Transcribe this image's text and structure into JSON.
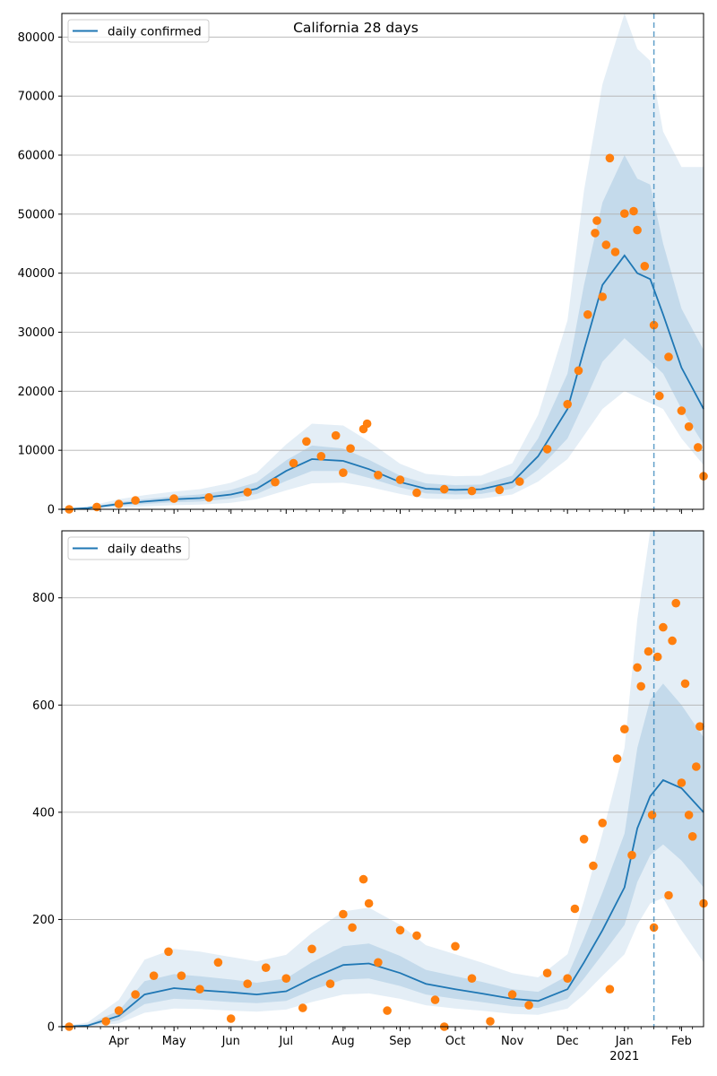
{
  "colors": {
    "median_line": "#1f77b4",
    "points": "#ff7f0e",
    "band": "#1f77b4",
    "grid": "#b0b0b0",
    "vline": "#1f77b4"
  },
  "x_axis": {
    "month_labels": [
      "Apr",
      "May",
      "Jun",
      "Jul",
      "Aug",
      "Sep",
      "Oct",
      "Nov",
      "Dec",
      "Jan",
      "Feb"
    ],
    "year_label": "2021",
    "range": [
      "2020-03-01",
      "2021-02-13"
    ],
    "forecast_start": "2021-01-17"
  },
  "chart_data": [
    {
      "type": "line",
      "title": "California 28 days",
      "legend": {
        "label": "daily confirmed",
        "position": "top-left"
      },
      "ylim": [
        0,
        84000
      ],
      "yticks": [
        0,
        10000,
        20000,
        30000,
        40000,
        50000,
        60000,
        70000,
        80000
      ],
      "grid": "horizontal",
      "x": [
        "2020-03-01",
        "2020-03-15",
        "2020-04-01",
        "2020-04-15",
        "2020-05-01",
        "2020-05-15",
        "2020-06-01",
        "2020-06-15",
        "2020-07-01",
        "2020-07-15",
        "2020-08-01",
        "2020-08-15",
        "2020-09-01",
        "2020-09-15",
        "2020-10-01",
        "2020-10-15",
        "2020-11-01",
        "2020-11-15",
        "2020-12-01",
        "2020-12-10",
        "2020-12-20",
        "2021-01-01",
        "2021-01-08",
        "2021-01-15",
        "2021-01-22",
        "2021-02-01",
        "2021-02-13"
      ],
      "series": [
        {
          "name": "daily confirmed",
          "values": [
            0,
            200,
            900,
            1300,
            1700,
            1900,
            2500,
            3500,
            6500,
            8500,
            8200,
            6800,
            4600,
            3500,
            3300,
            3400,
            4600,
            9000,
            17000,
            27000,
            38000,
            43000,
            40000,
            39000,
            33000,
            24000,
            17000
          ]
        }
      ],
      "band_inner": {
        "lower": [
          0,
          100,
          600,
          900,
          1200,
          1300,
          1800,
          2600,
          4800,
          6500,
          6500,
          5300,
          3700,
          2700,
          2500,
          2600,
          3500,
          6700,
          12000,
          18000,
          25000,
          29000,
          27000,
          25000,
          23000,
          17000,
          11000
        ],
        "upper": [
          0,
          300,
          1200,
          1700,
          2200,
          2500,
          3300,
          4600,
          8300,
          10800,
          10300,
          8400,
          5700,
          4400,
          4100,
          4200,
          5700,
          12000,
          23000,
          38000,
          52000,
          60000,
          56000,
          55000,
          45000,
          34000,
          27000
        ]
      },
      "band_outer": {
        "lower": [
          0,
          50,
          300,
          500,
          700,
          800,
          1100,
          1700,
          3200,
          4400,
          4500,
          3800,
          2600,
          1800,
          1700,
          1800,
          2500,
          4700,
          8500,
          12500,
          17000,
          20000,
          19000,
          18000,
          17000,
          12000,
          7500
        ],
        "upper": [
          0,
          500,
          1700,
          2400,
          3000,
          3400,
          4500,
          6200,
          11000,
          14500,
          14200,
          11500,
          7700,
          6000,
          5600,
          5700,
          7800,
          16000,
          32000,
          54000,
          72000,
          84000,
          78000,
          76000,
          64000,
          58000,
          58000
        ]
      },
      "points_sample": [
        [
          "2020-03-05",
          0
        ],
        [
          "2020-03-20",
          400
        ],
        [
          "2020-04-01",
          900
        ],
        [
          "2020-04-10",
          1500
        ],
        [
          "2020-05-01",
          1800
        ],
        [
          "2020-05-20",
          2000
        ],
        [
          "2020-06-10",
          2900
        ],
        [
          "2020-06-25",
          4600
        ],
        [
          "2020-07-05",
          7800
        ],
        [
          "2020-07-12",
          11500
        ],
        [
          "2020-07-20",
          9000
        ],
        [
          "2020-07-28",
          12500
        ],
        [
          "2020-08-01",
          6200
        ],
        [
          "2020-08-05",
          10300
        ],
        [
          "2020-08-12",
          13600
        ],
        [
          "2020-08-14",
          14500
        ],
        [
          "2020-08-20",
          5800
        ],
        [
          "2020-09-01",
          5000
        ],
        [
          "2020-09-10",
          2800
        ],
        [
          "2020-09-25",
          3400
        ],
        [
          "2020-10-10",
          3100
        ],
        [
          "2020-10-25",
          3300
        ],
        [
          "2020-11-05",
          4700
        ],
        [
          "2020-11-20",
          10200
        ],
        [
          "2020-12-01",
          17800
        ],
        [
          "2020-12-07",
          23500
        ],
        [
          "2020-12-12",
          33000
        ],
        [
          "2020-12-16",
          46800
        ],
        [
          "2020-12-17",
          48900
        ],
        [
          "2020-12-20",
          36000
        ],
        [
          "2020-12-22",
          44800
        ],
        [
          "2020-12-24",
          59500
        ],
        [
          "2020-12-27",
          43600
        ],
        [
          "2021-01-01",
          50100
        ],
        [
          "2021-01-06",
          50500
        ],
        [
          "2021-01-08",
          47300
        ],
        [
          "2021-01-12",
          41200
        ],
        [
          "2021-01-17",
          31200
        ],
        [
          "2021-01-20",
          19200
        ],
        [
          "2021-01-25",
          25800
        ],
        [
          "2021-02-01",
          16700
        ],
        [
          "2021-02-05",
          14000
        ],
        [
          "2021-02-10",
          10500
        ],
        [
          "2021-02-13",
          5600
        ]
      ]
    },
    {
      "type": "line",
      "title": "",
      "legend": {
        "label": "daily deaths",
        "position": "top-left"
      },
      "ylim": [
        0,
        925
      ],
      "yticks": [
        0,
        200,
        400,
        600,
        800
      ],
      "grid": "horizontal",
      "x": [
        "2020-03-01",
        "2020-03-15",
        "2020-04-01",
        "2020-04-15",
        "2020-05-01",
        "2020-05-15",
        "2020-06-01",
        "2020-06-15",
        "2020-07-01",
        "2020-07-15",
        "2020-08-01",
        "2020-08-15",
        "2020-09-01",
        "2020-09-15",
        "2020-10-01",
        "2020-10-15",
        "2020-11-01",
        "2020-11-15",
        "2020-12-01",
        "2020-12-10",
        "2020-12-20",
        "2021-01-01",
        "2021-01-08",
        "2021-01-15",
        "2021-01-22",
        "2021-02-01",
        "2021-02-13"
      ],
      "series": [
        {
          "name": "daily deaths",
          "values": [
            0,
            2,
            20,
            60,
            72,
            68,
            64,
            60,
            66,
            90,
            115,
            118,
            100,
            80,
            70,
            62,
            52,
            48,
            70,
            120,
            180,
            260,
            370,
            430,
            460,
            445,
            400
          ]
        }
      ],
      "band_inner": {
        "lower": [
          0,
          1,
          12,
          42,
          52,
          50,
          46,
          44,
          48,
          68,
          88,
          90,
          76,
          60,
          52,
          46,
          38,
          35,
          52,
          90,
          135,
          190,
          270,
          320,
          340,
          310,
          260
        ],
        "upper": [
          0,
          4,
          30,
          85,
          98,
          94,
          88,
          82,
          90,
          120,
          150,
          155,
          132,
          106,
          94,
          84,
          70,
          65,
          95,
          165,
          250,
          360,
          520,
          610,
          640,
          600,
          540
        ]
      },
      "band_outer": {
        "lower": [
          0,
          0,
          6,
          26,
          34,
          33,
          30,
          28,
          32,
          46,
          60,
          62,
          52,
          40,
          34,
          30,
          24,
          22,
          34,
          60,
          95,
          135,
          190,
          230,
          240,
          180,
          120
        ],
        "upper": [
          0,
          8,
          50,
          125,
          145,
          140,
          130,
          122,
          134,
          175,
          215,
          222,
          190,
          152,
          135,
          120,
          100,
          92,
          135,
          235,
          360,
          520,
          760,
          925,
          925,
          925,
          925
        ]
      },
      "points_sample": [
        [
          "2020-03-05",
          0
        ],
        [
          "2020-03-25",
          10
        ],
        [
          "2020-04-01",
          30
        ],
        [
          "2020-04-10",
          60
        ],
        [
          "2020-04-20",
          95
        ],
        [
          "2020-04-28",
          140
        ],
        [
          "2020-05-05",
          95
        ],
        [
          "2020-05-15",
          70
        ],
        [
          "2020-05-25",
          120
        ],
        [
          "2020-06-01",
          15
        ],
        [
          "2020-06-10",
          80
        ],
        [
          "2020-06-20",
          110
        ],
        [
          "2020-07-01",
          90
        ],
        [
          "2020-07-10",
          35
        ],
        [
          "2020-07-15",
          145
        ],
        [
          "2020-07-25",
          80
        ],
        [
          "2020-08-01",
          210
        ],
        [
          "2020-08-06",
          185
        ],
        [
          "2020-08-12",
          275
        ],
        [
          "2020-08-15",
          230
        ],
        [
          "2020-08-20",
          120
        ],
        [
          "2020-08-25",
          30
        ],
        [
          "2020-09-01",
          180
        ],
        [
          "2020-09-10",
          170
        ],
        [
          "2020-09-20",
          50
        ],
        [
          "2020-09-25",
          0
        ],
        [
          "2020-10-01",
          150
        ],
        [
          "2020-10-10",
          90
        ],
        [
          "2020-10-20",
          10
        ],
        [
          "2020-11-01",
          60
        ],
        [
          "2020-11-10",
          40
        ],
        [
          "2020-11-20",
          100
        ],
        [
          "2020-12-01",
          90
        ],
        [
          "2020-12-05",
          220
        ],
        [
          "2020-12-10",
          350
        ],
        [
          "2020-12-15",
          300
        ],
        [
          "2020-12-20",
          380
        ],
        [
          "2020-12-24",
          70
        ],
        [
          "2020-12-28",
          500
        ],
        [
          "2021-01-01",
          555
        ],
        [
          "2021-01-05",
          320
        ],
        [
          "2021-01-08",
          670
        ],
        [
          "2021-01-10",
          635
        ],
        [
          "2021-01-14",
          700
        ],
        [
          "2021-01-16",
          395
        ],
        [
          "2021-01-17",
          185
        ],
        [
          "2021-01-19",
          690
        ],
        [
          "2021-01-22",
          745
        ],
        [
          "2021-01-25",
          245
        ],
        [
          "2021-01-27",
          720
        ],
        [
          "2021-01-29",
          790
        ],
        [
          "2021-02-01",
          455
        ],
        [
          "2021-02-03",
          640
        ],
        [
          "2021-02-05",
          395
        ],
        [
          "2021-02-07",
          355
        ],
        [
          "2021-02-09",
          485
        ],
        [
          "2021-02-11",
          560
        ],
        [
          "2021-02-13",
          230
        ]
      ]
    }
  ]
}
